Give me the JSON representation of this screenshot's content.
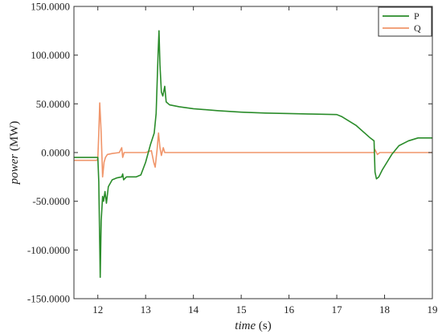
{
  "chart_data": {
    "type": "line",
    "xlabel_italic": "time",
    "xlabel_unit": "(s)",
    "ylabel_italic": "power",
    "ylabel_unit": "(MW)",
    "xlim": [
      11.5,
      19
    ],
    "ylim": [
      -150,
      150
    ],
    "x_ticks": [
      12,
      13,
      14,
      15,
      16,
      17,
      18,
      19
    ],
    "x_tick_labels": [
      "12",
      "13",
      "14",
      "15",
      "16",
      "17",
      "18",
      "19"
    ],
    "y_ticks": [
      150,
      100,
      50,
      0,
      -50,
      -100,
      -150
    ],
    "y_tick_labels": [
      "150.0000",
      "100.0000",
      "50.0000",
      "0.0000",
      "-50.0000",
      "-100.0000",
      "-150.0000"
    ],
    "grid": false,
    "legend_position": "top-right",
    "colors": {
      "P": "#2a8c2a",
      "Q": "#f0956a"
    },
    "series": [
      {
        "name": "P",
        "color": "#2a8c2a",
        "points": [
          [
            11.5,
            -5
          ],
          [
            11.98,
            -5
          ],
          [
            12.0,
            -5
          ],
          [
            12.02,
            -30
          ],
          [
            12.05,
            -128
          ],
          [
            12.07,
            -70
          ],
          [
            12.1,
            -45
          ],
          [
            12.12,
            -50
          ],
          [
            12.15,
            -40
          ],
          [
            12.18,
            -52
          ],
          [
            12.22,
            -35
          ],
          [
            12.3,
            -28
          ],
          [
            12.4,
            -26
          ],
          [
            12.5,
            -25
          ],
          [
            12.52,
            -22
          ],
          [
            12.54,
            -28
          ],
          [
            12.6,
            -25
          ],
          [
            12.8,
            -25
          ],
          [
            12.9,
            -23
          ],
          [
            13.0,
            -10
          ],
          [
            13.1,
            8
          ],
          [
            13.18,
            20
          ],
          [
            13.22,
            40
          ],
          [
            13.26,
            100
          ],
          [
            13.28,
            125
          ],
          [
            13.3,
            90
          ],
          [
            13.33,
            62
          ],
          [
            13.36,
            58
          ],
          [
            13.4,
            68
          ],
          [
            13.43,
            52
          ],
          [
            13.5,
            49
          ],
          [
            13.7,
            47
          ],
          [
            14.0,
            45
          ],
          [
            14.5,
            43
          ],
          [
            15.0,
            41.5
          ],
          [
            15.5,
            40.5
          ],
          [
            16.0,
            40
          ],
          [
            16.5,
            39.5
          ],
          [
            17.0,
            39
          ],
          [
            17.1,
            37
          ],
          [
            17.4,
            28
          ],
          [
            17.7,
            15
          ],
          [
            17.78,
            12
          ],
          [
            17.8,
            -20
          ],
          [
            17.83,
            -27
          ],
          [
            17.88,
            -25
          ],
          [
            17.95,
            -18
          ],
          [
            18.05,
            -10
          ],
          [
            18.15,
            -2
          ],
          [
            18.3,
            7
          ],
          [
            18.5,
            12
          ],
          [
            18.7,
            15
          ],
          [
            19.0,
            15
          ]
        ]
      },
      {
        "name": "Q",
        "color": "#f0956a",
        "points": [
          [
            11.5,
            -8
          ],
          [
            11.98,
            -8
          ],
          [
            12.0,
            -6
          ],
          [
            12.02,
            20
          ],
          [
            12.04,
            51
          ],
          [
            12.07,
            20
          ],
          [
            12.1,
            -25
          ],
          [
            12.13,
            -10
          ],
          [
            12.16,
            -5
          ],
          [
            12.2,
            -2
          ],
          [
            12.3,
            -1
          ],
          [
            12.45,
            0
          ],
          [
            12.5,
            5
          ],
          [
            12.52,
            -5
          ],
          [
            12.55,
            0
          ],
          [
            12.7,
            0
          ],
          [
            13.0,
            0
          ],
          [
            13.12,
            2
          ],
          [
            13.17,
            -10
          ],
          [
            13.2,
            -15
          ],
          [
            13.24,
            3
          ],
          [
            13.27,
            20
          ],
          [
            13.3,
            5
          ],
          [
            13.33,
            -3
          ],
          [
            13.37,
            5
          ],
          [
            13.4,
            0
          ],
          [
            13.5,
            0
          ],
          [
            14.0,
            0
          ],
          [
            15.0,
            0
          ],
          [
            16.0,
            0
          ],
          [
            17.0,
            0
          ],
          [
            17.78,
            0
          ],
          [
            17.8,
            3
          ],
          [
            17.85,
            -2
          ],
          [
            17.9,
            0
          ],
          [
            18.5,
            0
          ],
          [
            19.0,
            0
          ]
        ]
      }
    ]
  }
}
